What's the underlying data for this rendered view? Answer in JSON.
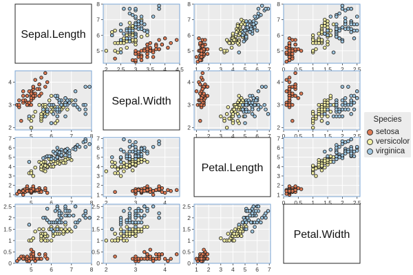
{
  "chart_data": {
    "type": "scatter-matrix",
    "variables": [
      "Sepal.Length",
      "Sepal.Width",
      "Petal.Length",
      "Petal.Width"
    ],
    "ranges": {
      "Sepal.Length": [
        4.2,
        8.0
      ],
      "Sepal.Width": [
        1.9,
        4.5
      ],
      "Petal.Length": [
        0.8,
        7.1
      ],
      "Petal.Width": [
        0,
        2.6
      ]
    },
    "ticks": {
      "Sepal.Length": [
        5,
        6,
        7,
        8
      ],
      "Sepal.Width": [
        2,
        2.5,
        3,
        3.5,
        4,
        4.5
      ],
      "Sepal.Width_y": [
        2,
        3,
        4
      ],
      "Petal.Length": [
        1,
        2,
        3,
        4,
        5,
        6,
        7
      ],
      "Petal.Width": [
        0,
        0.5,
        1,
        1.5,
        2,
        2.5
      ]
    },
    "grid": true,
    "legend": {
      "title": "Species",
      "position": "right",
      "entries": [
        "setosa",
        "versicolor",
        "virginica"
      ]
    },
    "colors": {
      "setosa": "#e07b54",
      "versicolor": "#f3efa4",
      "virginica": "#9fc8e3"
    },
    "species_order": [
      "setosa",
      "versicolor",
      "virginica"
    ],
    "rows": {
      "setosa": [
        [
          5.1,
          3.5,
          1.4,
          0.2
        ],
        [
          4.9,
          3.0,
          1.4,
          0.2
        ],
        [
          4.7,
          3.2,
          1.3,
          0.2
        ],
        [
          4.6,
          3.1,
          1.5,
          0.2
        ],
        [
          5.0,
          3.6,
          1.4,
          0.2
        ],
        [
          5.4,
          3.9,
          1.7,
          0.4
        ],
        [
          4.6,
          3.4,
          1.4,
          0.3
        ],
        [
          5.0,
          3.4,
          1.5,
          0.2
        ],
        [
          4.4,
          2.9,
          1.4,
          0.2
        ],
        [
          4.9,
          3.1,
          1.5,
          0.1
        ],
        [
          5.4,
          3.7,
          1.5,
          0.2
        ],
        [
          4.8,
          3.4,
          1.6,
          0.2
        ],
        [
          4.8,
          3.0,
          1.4,
          0.1
        ],
        [
          4.3,
          3.0,
          1.1,
          0.1
        ],
        [
          5.8,
          4.0,
          1.2,
          0.2
        ],
        [
          5.7,
          4.4,
          1.5,
          0.4
        ],
        [
          5.4,
          3.9,
          1.3,
          0.4
        ],
        [
          5.1,
          3.5,
          1.4,
          0.3
        ],
        [
          5.7,
          3.8,
          1.7,
          0.3
        ],
        [
          5.1,
          3.8,
          1.5,
          0.3
        ],
        [
          5.4,
          3.4,
          1.7,
          0.2
        ],
        [
          5.1,
          3.7,
          1.5,
          0.4
        ],
        [
          4.6,
          3.6,
          1.0,
          0.2
        ],
        [
          5.1,
          3.3,
          1.7,
          0.5
        ],
        [
          4.8,
          3.4,
          1.9,
          0.2
        ],
        [
          5.0,
          3.0,
          1.6,
          0.2
        ],
        [
          5.0,
          3.4,
          1.6,
          0.4
        ],
        [
          5.2,
          3.5,
          1.5,
          0.2
        ],
        [
          5.2,
          3.4,
          1.4,
          0.2
        ],
        [
          4.7,
          3.2,
          1.6,
          0.2
        ],
        [
          4.8,
          3.1,
          1.6,
          0.2
        ],
        [
          5.4,
          3.4,
          1.5,
          0.4
        ],
        [
          5.2,
          4.1,
          1.5,
          0.1
        ],
        [
          5.5,
          4.2,
          1.4,
          0.2
        ],
        [
          4.9,
          3.1,
          1.5,
          0.2
        ],
        [
          5.0,
          3.2,
          1.2,
          0.2
        ],
        [
          5.5,
          3.5,
          1.3,
          0.2
        ],
        [
          4.9,
          3.6,
          1.4,
          0.1
        ],
        [
          4.4,
          3.0,
          1.3,
          0.2
        ],
        [
          5.1,
          3.4,
          1.5,
          0.2
        ],
        [
          5.0,
          3.5,
          1.3,
          0.3
        ],
        [
          4.5,
          2.3,
          1.3,
          0.3
        ],
        [
          4.4,
          3.2,
          1.3,
          0.2
        ],
        [
          5.0,
          3.5,
          1.6,
          0.6
        ],
        [
          5.1,
          3.8,
          1.9,
          0.4
        ],
        [
          4.8,
          3.0,
          1.4,
          0.3
        ],
        [
          5.1,
          3.8,
          1.6,
          0.2
        ],
        [
          4.6,
          3.2,
          1.4,
          0.2
        ],
        [
          5.3,
          3.7,
          1.5,
          0.2
        ],
        [
          5.0,
          3.3,
          1.4,
          0.2
        ]
      ],
      "versicolor": [
        [
          7.0,
          3.2,
          4.7,
          1.4
        ],
        [
          6.4,
          3.2,
          4.5,
          1.5
        ],
        [
          6.9,
          3.1,
          4.9,
          1.5
        ],
        [
          5.5,
          2.3,
          4.0,
          1.3
        ],
        [
          6.5,
          2.8,
          4.6,
          1.5
        ],
        [
          5.7,
          2.8,
          4.5,
          1.3
        ],
        [
          6.3,
          3.3,
          4.7,
          1.6
        ],
        [
          4.9,
          2.4,
          3.3,
          1.0
        ],
        [
          6.6,
          2.9,
          4.6,
          1.3
        ],
        [
          5.2,
          2.7,
          3.9,
          1.4
        ],
        [
          5.0,
          2.0,
          3.5,
          1.0
        ],
        [
          5.9,
          3.0,
          4.2,
          1.5
        ],
        [
          6.0,
          2.2,
          4.0,
          1.0
        ],
        [
          6.1,
          2.9,
          4.7,
          1.4
        ],
        [
          5.6,
          2.9,
          3.6,
          1.3
        ],
        [
          6.7,
          3.1,
          4.4,
          1.4
        ],
        [
          5.6,
          3.0,
          4.5,
          1.5
        ],
        [
          5.8,
          2.7,
          4.1,
          1.0
        ],
        [
          6.2,
          2.2,
          4.5,
          1.5
        ],
        [
          5.6,
          2.5,
          3.9,
          1.1
        ],
        [
          5.9,
          3.2,
          4.8,
          1.8
        ],
        [
          6.1,
          2.8,
          4.0,
          1.3
        ],
        [
          6.3,
          2.5,
          4.9,
          1.5
        ],
        [
          6.1,
          2.8,
          4.7,
          1.2
        ],
        [
          6.4,
          2.9,
          4.3,
          1.3
        ],
        [
          6.6,
          3.0,
          4.4,
          1.4
        ],
        [
          6.8,
          2.8,
          4.8,
          1.4
        ],
        [
          6.7,
          3.0,
          5.0,
          1.7
        ],
        [
          6.0,
          2.9,
          4.5,
          1.5
        ],
        [
          5.7,
          2.6,
          3.5,
          1.0
        ],
        [
          5.5,
          2.4,
          3.8,
          1.1
        ],
        [
          5.5,
          2.4,
          3.7,
          1.0
        ],
        [
          5.8,
          2.7,
          3.9,
          1.2
        ],
        [
          6.0,
          2.7,
          5.1,
          1.6
        ],
        [
          5.4,
          3.0,
          4.5,
          1.5
        ],
        [
          6.0,
          3.4,
          4.5,
          1.6
        ],
        [
          6.7,
          3.1,
          4.7,
          1.5
        ],
        [
          6.3,
          2.3,
          4.4,
          1.3
        ],
        [
          5.6,
          3.0,
          4.1,
          1.3
        ],
        [
          5.5,
          2.5,
          4.0,
          1.3
        ],
        [
          5.5,
          2.6,
          4.4,
          1.2
        ],
        [
          6.1,
          3.0,
          4.6,
          1.4
        ],
        [
          5.8,
          2.6,
          4.0,
          1.2
        ],
        [
          5.0,
          2.3,
          3.3,
          1.0
        ],
        [
          5.6,
          2.7,
          4.2,
          1.3
        ],
        [
          5.7,
          3.0,
          4.2,
          1.2
        ],
        [
          5.7,
          2.9,
          4.2,
          1.3
        ],
        [
          6.2,
          2.9,
          4.3,
          1.3
        ],
        [
          5.1,
          2.5,
          3.0,
          1.1
        ],
        [
          5.7,
          2.8,
          4.1,
          1.3
        ]
      ],
      "virginica": [
        [
          6.3,
          3.3,
          6.0,
          2.5
        ],
        [
          5.8,
          2.7,
          5.1,
          1.9
        ],
        [
          7.1,
          3.0,
          5.9,
          2.1
        ],
        [
          6.3,
          2.9,
          5.6,
          1.8
        ],
        [
          6.5,
          3.0,
          5.8,
          2.2
        ],
        [
          7.6,
          3.0,
          6.6,
          2.1
        ],
        [
          4.9,
          2.5,
          4.5,
          1.7
        ],
        [
          7.3,
          2.9,
          6.3,
          1.8
        ],
        [
          6.7,
          2.5,
          5.8,
          1.8
        ],
        [
          7.2,
          3.6,
          6.1,
          2.5
        ],
        [
          6.5,
          3.2,
          5.1,
          2.0
        ],
        [
          6.4,
          2.7,
          5.3,
          1.9
        ],
        [
          6.8,
          3.0,
          5.5,
          2.1
        ],
        [
          5.7,
          2.5,
          5.0,
          2.0
        ],
        [
          5.8,
          2.8,
          5.1,
          2.4
        ],
        [
          6.4,
          3.2,
          5.3,
          2.3
        ],
        [
          6.5,
          3.0,
          5.5,
          1.8
        ],
        [
          7.7,
          3.8,
          6.7,
          2.2
        ],
        [
          7.7,
          2.6,
          6.9,
          2.3
        ],
        [
          6.0,
          2.2,
          5.0,
          1.5
        ],
        [
          6.9,
          3.2,
          5.7,
          2.3
        ],
        [
          5.6,
          2.8,
          4.9,
          2.0
        ],
        [
          7.7,
          2.8,
          6.7,
          2.0
        ],
        [
          6.3,
          2.7,
          4.9,
          1.8
        ],
        [
          6.7,
          3.3,
          5.7,
          2.1
        ],
        [
          7.2,
          3.2,
          6.0,
          1.8
        ],
        [
          6.2,
          2.8,
          4.8,
          1.8
        ],
        [
          6.1,
          3.0,
          4.9,
          1.8
        ],
        [
          6.4,
          2.8,
          5.6,
          2.1
        ],
        [
          7.2,
          3.0,
          5.8,
          1.6
        ],
        [
          7.4,
          2.8,
          6.1,
          1.9
        ],
        [
          7.9,
          3.8,
          6.4,
          2.0
        ],
        [
          6.4,
          2.8,
          5.6,
          2.2
        ],
        [
          6.3,
          2.8,
          5.1,
          1.5
        ],
        [
          6.1,
          2.6,
          5.6,
          1.4
        ],
        [
          7.7,
          3.0,
          6.1,
          2.3
        ],
        [
          6.3,
          3.4,
          5.6,
          2.4
        ],
        [
          6.4,
          3.1,
          5.5,
          1.8
        ],
        [
          6.0,
          3.0,
          4.8,
          1.8
        ],
        [
          6.9,
          3.1,
          5.4,
          2.1
        ],
        [
          6.7,
          3.1,
          5.6,
          2.4
        ],
        [
          6.9,
          3.1,
          5.1,
          2.3
        ],
        [
          5.8,
          2.7,
          5.1,
          1.9
        ],
        [
          6.8,
          3.2,
          5.9,
          2.3
        ],
        [
          6.7,
          3.3,
          5.7,
          2.5
        ],
        [
          6.7,
          3.0,
          5.2,
          2.3
        ],
        [
          6.3,
          2.5,
          5.0,
          1.9
        ],
        [
          6.5,
          3.0,
          5.2,
          2.0
        ],
        [
          6.2,
          3.4,
          5.4,
          2.3
        ],
        [
          5.9,
          3.0,
          5.1,
          1.8
        ]
      ]
    }
  }
}
